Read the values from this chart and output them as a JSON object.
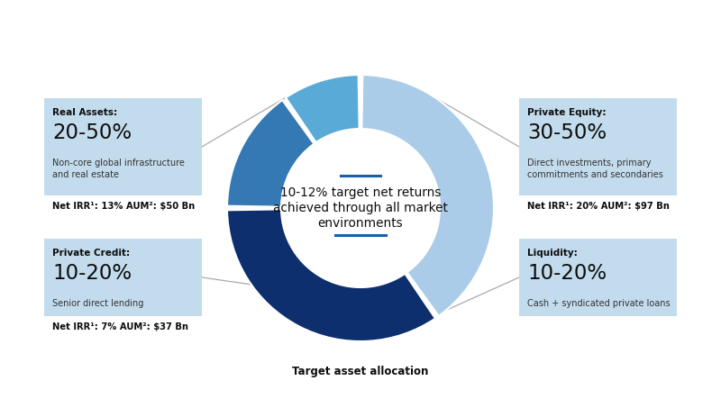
{
  "bg": "#ffffff",
  "segments": [
    {
      "label": "Private Equity",
      "value": 145,
      "color": "#aacce8"
    },
    {
      "label": "Real Assets",
      "value": 125,
      "color": "#0d2f6e"
    },
    {
      "label": "Private Credit",
      "value": 55,
      "color": "#3478b4"
    },
    {
      "label": "Liquidity",
      "value": 35,
      "color": "#5aaad8"
    }
  ],
  "center_lines": [
    "10-12% target net returns",
    "achieved through all market",
    "environments"
  ],
  "accent_color": "#1a5fa8",
  "below_label": "Target asset allocation",
  "boxes": [
    {
      "id": "real_assets",
      "title": "Real Assets:",
      "pct": "20-50%",
      "desc": "Non-core global infrastructure\nand real estate",
      "irr": "Net IRR¹: 13% AUM²: $50 Bn",
      "side": "left",
      "row": "top"
    },
    {
      "id": "private_credit",
      "title": "Private Credit:",
      "pct": "10-20%",
      "desc": "Senior direct lending",
      "irr": "Net IRR¹: 7% AUM²: $37 Bn",
      "side": "left",
      "row": "bottom"
    },
    {
      "id": "private_equity",
      "title": "Private Equity:",
      "pct": "30-50%",
      "desc": "Direct investments, primary\ncommitments and secondaries",
      "irr": "Net IRR¹: 20% AUM²: $97 Bn",
      "side": "right",
      "row": "top"
    },
    {
      "id": "liquidity",
      "title": "Liquidity:",
      "pct": "10-20%",
      "desc": "Cash + syndicated private loans",
      "irr": "",
      "side": "right",
      "row": "bottom"
    }
  ],
  "conn_angles_deg": {
    "real_assets": 118,
    "private_credit": 215,
    "private_equity": 55,
    "liquidity": 310
  }
}
